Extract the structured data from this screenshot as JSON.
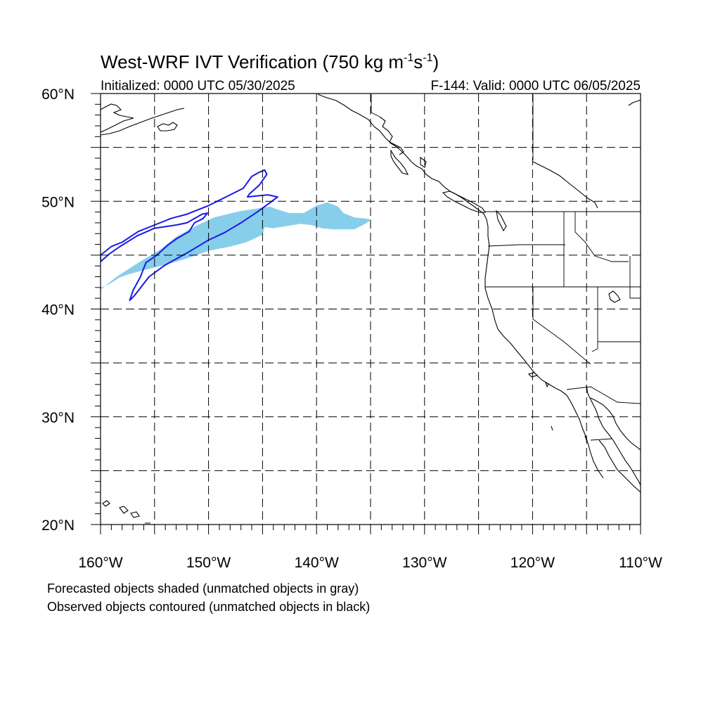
{
  "title": {
    "main": "West-WRF IVT Verification (750 kg m",
    "sup1": "-1",
    "mid": "s",
    "sup2": "-1",
    "close": ")"
  },
  "subtitle": {
    "left": "Initialized: 0000 UTC 05/30/2025",
    "right": "F-144: Valid: 0000 UTC 06/05/2025"
  },
  "axes": {
    "lon_range": [
      -160,
      -110
    ],
    "lat_range": [
      20,
      60
    ],
    "x_ticks": [
      {
        "value": -160,
        "label": "160°W"
      },
      {
        "value": -150,
        "label": "150°W"
      },
      {
        "value": -140,
        "label": "140°W"
      },
      {
        "value": -130,
        "label": "130°W"
      },
      {
        "value": -120,
        "label": "120°W"
      },
      {
        "value": -110,
        "label": "110°W"
      }
    ],
    "y_ticks": [
      {
        "value": 60,
        "label": "60°N"
      },
      {
        "value": 50,
        "label": "50°N"
      },
      {
        "value": 40,
        "label": "40°N"
      },
      {
        "value": 30,
        "label": "30°N"
      },
      {
        "value": 20,
        "label": "20°N"
      }
    ],
    "grid_spacing_deg": 5,
    "grid": "dashed"
  },
  "legend_text": {
    "line1": "Forecasted objects shaded (unmatched objects in gray)",
    "line2": "Observed objects contoured (unmatched objects in black)"
  },
  "colors": {
    "forecast_fill": "#87ceeb",
    "observed_contour": "#1a1ae6",
    "coastline": "#000000"
  },
  "map_data": {
    "forecast_objects": [
      {
        "matched": true,
        "polygon": [
          [
            -160,
            41.8
          ],
          [
            -158.5,
            43
          ],
          [
            -156.5,
            44.3
          ],
          [
            -154.5,
            45.5
          ],
          [
            -153,
            46.7
          ],
          [
            -151,
            47.8
          ],
          [
            -149.5,
            48.5
          ],
          [
            -147,
            49.1
          ],
          [
            -145,
            49.4
          ],
          [
            -144.3,
            49.5
          ],
          [
            -143.8,
            49.3
          ],
          [
            -142.5,
            48.9
          ],
          [
            -141.2,
            48.9
          ],
          [
            -140,
            49.6
          ],
          [
            -139,
            49.9
          ],
          [
            -138,
            49.5
          ],
          [
            -137.5,
            48.9
          ],
          [
            -136.5,
            48.5
          ],
          [
            -135.5,
            48.4
          ],
          [
            -134.9,
            48.3
          ],
          [
            -135.5,
            47.9
          ],
          [
            -136.5,
            47.4
          ],
          [
            -137.5,
            47.4
          ],
          [
            -138.5,
            47.4
          ],
          [
            -139.5,
            47.5
          ],
          [
            -140.5,
            47.8
          ],
          [
            -141.5,
            47.9
          ],
          [
            -142.8,
            47.7
          ],
          [
            -144,
            47.5
          ],
          [
            -144.8,
            47.6
          ],
          [
            -145,
            46.9
          ],
          [
            -146.5,
            46.2
          ],
          [
            -148,
            45.8
          ],
          [
            -150,
            45.4
          ],
          [
            -152,
            44.7
          ],
          [
            -154,
            44.1
          ],
          [
            -156,
            43.6
          ],
          [
            -157.5,
            43.2
          ],
          [
            -158.3,
            42.9
          ],
          [
            -159.2,
            42.3
          ],
          [
            -160,
            42.0
          ]
        ]
      }
    ],
    "observed_objects": [
      {
        "matched": true,
        "polygon": [
          [
            -160,
            45.0
          ],
          [
            -159,
            45.8
          ],
          [
            -158,
            46.2
          ],
          [
            -156.5,
            47.2
          ],
          [
            -155,
            47.8
          ],
          [
            -153.5,
            48.4
          ],
          [
            -152,
            48.8
          ],
          [
            -150,
            49.6
          ],
          [
            -148,
            50.6
          ],
          [
            -146.8,
            51.2
          ],
          [
            -146,
            52.3
          ],
          [
            -145.3,
            52.7
          ],
          [
            -144.8,
            52.9
          ],
          [
            -144.6,
            52.5
          ],
          [
            -145.3,
            51.5
          ],
          [
            -146.2,
            50.7
          ],
          [
            -146.4,
            50.4
          ],
          [
            -145.5,
            50.5
          ],
          [
            -144.5,
            50.6
          ],
          [
            -143.6,
            50.4
          ],
          [
            -144.4,
            49.8
          ],
          [
            -145.5,
            49.0
          ],
          [
            -147,
            48.0
          ],
          [
            -148.5,
            47.1
          ],
          [
            -150,
            46.4
          ],
          [
            -152,
            45.2
          ],
          [
            -154,
            44.1
          ],
          [
            -155.5,
            43.0
          ],
          [
            -156.9,
            41.2
          ],
          [
            -157.3,
            40.8
          ],
          [
            -157.0,
            41.7
          ],
          [
            -156.3,
            43.0
          ],
          [
            -155.8,
            44.3
          ],
          [
            -154.8,
            45.0
          ],
          [
            -153.8,
            45.9
          ],
          [
            -153,
            46.5
          ],
          [
            -151.8,
            47.2
          ],
          [
            -151.3,
            48.0
          ],
          [
            -150.5,
            48.4
          ],
          [
            -150.1,
            48.9
          ],
          [
            -150.6,
            48.8
          ],
          [
            -152,
            48.0
          ],
          [
            -153,
            47.8
          ],
          [
            -155,
            47.5
          ],
          [
            -156.6,
            46.8
          ],
          [
            -158.2,
            45.8
          ],
          [
            -159.2,
            45.1
          ],
          [
            -160,
            44.4
          ]
        ]
      }
    ]
  }
}
